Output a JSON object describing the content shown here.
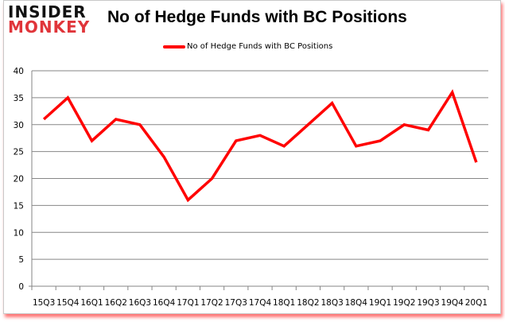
{
  "logo": {
    "line1": "INSIDER",
    "line2": "MONKEY"
  },
  "chart_data": {
    "type": "line",
    "title": "No of Hedge Funds with BC Positions",
    "xlabel": "",
    "ylabel": "",
    "categories": [
      "15Q3",
      "15Q4",
      "16Q1",
      "16Q2",
      "16Q3",
      "16Q4",
      "17Q1",
      "17Q2",
      "17Q3",
      "17Q4",
      "18Q1",
      "18Q2",
      "18Q3",
      "18Q4",
      "19Q1",
      "19Q2",
      "19Q3",
      "19Q4",
      "20Q1"
    ],
    "series": [
      {
        "name": "No of Hedge Funds with BC Positions",
        "color": "#ff0000",
        "values": [
          31,
          35,
          27,
          31,
          30,
          24,
          16,
          20,
          27,
          28,
          26,
          30,
          34,
          26,
          27,
          30,
          29,
          36,
          23
        ]
      }
    ],
    "ylim": [
      0,
      40
    ],
    "yticks": [
      0,
      5,
      10,
      15,
      20,
      25,
      30,
      35,
      40
    ],
    "grid": true,
    "legend_position": "top"
  }
}
